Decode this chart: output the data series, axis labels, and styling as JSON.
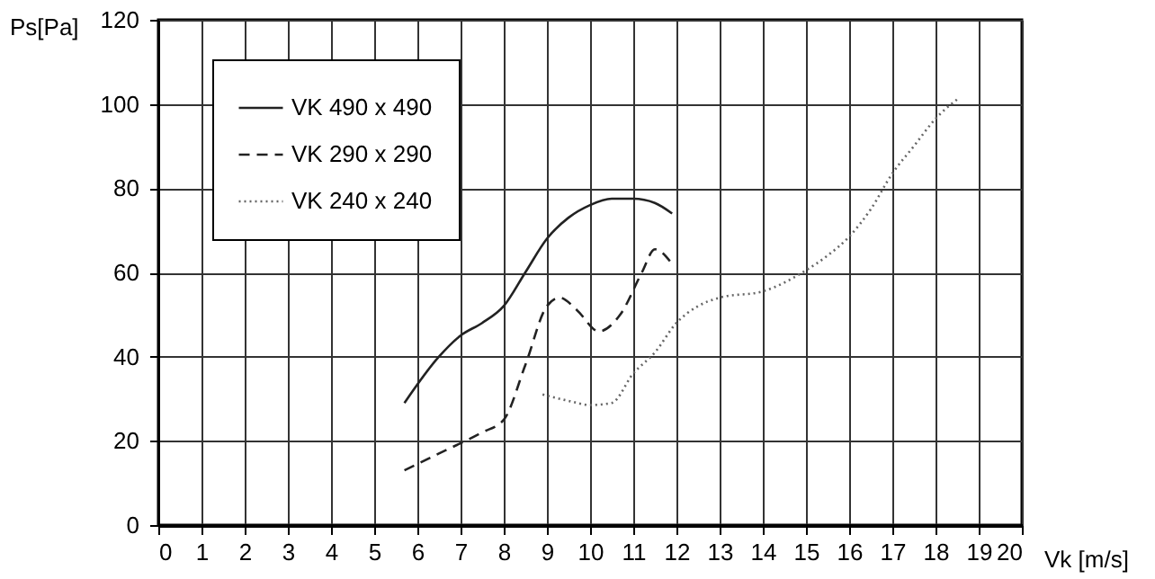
{
  "chart_data": {
    "type": "line",
    "xlabel": "Vk [m/s]",
    "ylabel": "Ps[Pa]",
    "xlim": [
      0,
      20
    ],
    "xticks": [
      0,
      1,
      2,
      3,
      4,
      5,
      6,
      7,
      8,
      9,
      10,
      11,
      12,
      13,
      14,
      15,
      16,
      17,
      18,
      19,
      20
    ],
    "ylim": [
      0,
      120
    ],
    "yticks": [
      0,
      20,
      40,
      60,
      80,
      100,
      120
    ],
    "grid": true,
    "legend": "top left",
    "series": [
      {
        "name": "VK 490 x 490",
        "color": "#222222",
        "line_style": "solid",
        "x": [
          5.7,
          6.5,
          7,
          7.5,
          8,
          8.5,
          9,
          9.5,
          10,
          10.5,
          11,
          11.5,
          11.9
        ],
        "values": [
          29,
          40,
          45,
          48,
          52,
          60,
          68,
          73,
          76,
          77.5,
          77.5,
          76.5,
          74
        ]
      },
      {
        "name": "VK 290 x 290",
        "color": "#222222",
        "line_style": "dashed",
        "x": [
          5.7,
          6.5,
          7.5,
          8,
          8.5,
          9,
          9.3,
          9.7,
          10.2,
          10.7,
          11.2,
          11.5,
          11.9
        ],
        "values": [
          13,
          17,
          22,
          25,
          38,
          52,
          54,
          51,
          46,
          50,
          60,
          65.5,
          62
        ]
      },
      {
        "name": "VK 240 x 240",
        "color": "#666666",
        "line_style": "dotted",
        "x": [
          8.9,
          9.5,
          10,
          10.5,
          11,
          11.5,
          12,
          12.5,
          13,
          14,
          15,
          15.5,
          16,
          16.5,
          17,
          17.5,
          18,
          18.55
        ],
        "values": [
          31,
          29.5,
          28.5,
          29,
          36,
          41,
          48,
          52,
          54,
          55.5,
          60.5,
          64,
          68.5,
          75,
          83.5,
          90,
          96.5,
          101.5
        ]
      }
    ]
  }
}
